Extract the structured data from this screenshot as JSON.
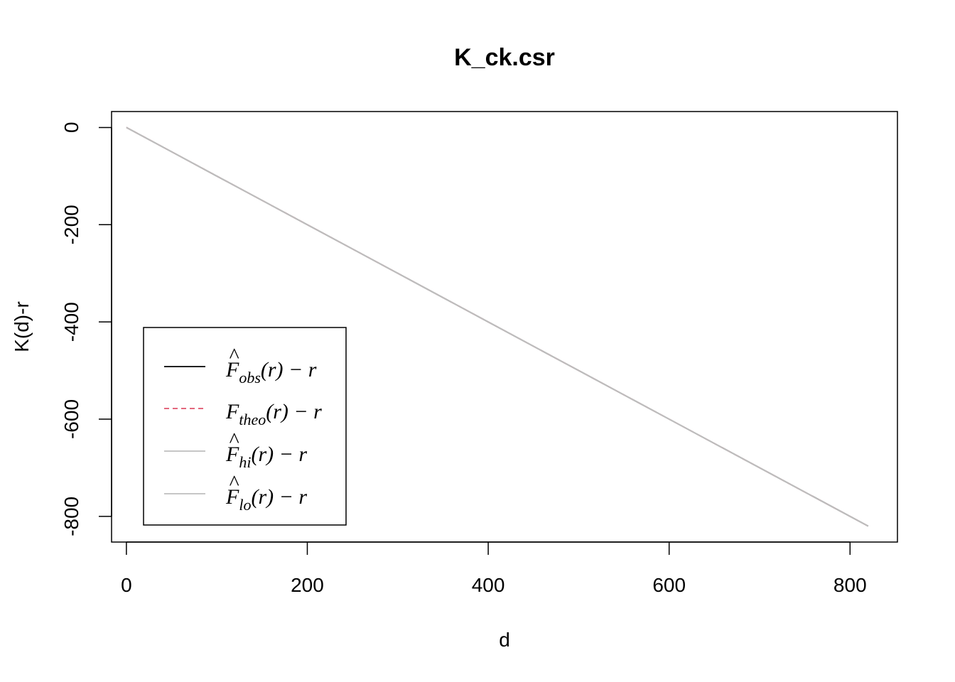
{
  "chart_data": {
    "type": "line",
    "title": "K_ck.csr",
    "xlabel": "d",
    "ylabel": "K(d)-r",
    "xlim": [
      -16.4,
      852.4
    ],
    "ylim": [
      -852.8,
      32.8
    ],
    "x_ticks": [
      0,
      200,
      400,
      600,
      800
    ],
    "y_ticks": [
      0,
      -200,
      -400,
      -600,
      -800
    ],
    "x_tick_labels": [
      "0",
      "200",
      "400",
      "600",
      "800"
    ],
    "y_tick_labels": [
      "0",
      "-200",
      "-400",
      "-600",
      "-800"
    ],
    "grid": false,
    "legend_position": "bottom-left",
    "series": [
      {
        "key": "obs",
        "legend": {
          "base": "F",
          "hat": true,
          "sub": "obs",
          "rest": "(r) − r"
        },
        "color": "#000000",
        "dash": "solid",
        "x": [
          0,
          100,
          200,
          300,
          400,
          500,
          600,
          700,
          820
        ],
        "y": [
          0,
          -100,
          -200,
          -300,
          -400,
          -500,
          -600,
          -700,
          -820
        ]
      },
      {
        "key": "theo",
        "legend": {
          "base": "F",
          "hat": false,
          "sub": "theo",
          "rest": "(r) − r"
        },
        "color": "#DF536B",
        "dash": "dashed",
        "x": [
          0,
          820
        ],
        "y": [
          0,
          -820
        ]
      },
      {
        "key": "hi",
        "legend": {
          "base": "F",
          "hat": true,
          "sub": "hi",
          "rest": "(r) − r"
        },
        "color": "#BEBEBE",
        "dash": "solid",
        "x": [
          0,
          820
        ],
        "y": [
          0,
          -820
        ]
      },
      {
        "key": "lo",
        "legend": {
          "base": "F",
          "hat": true,
          "sub": "lo",
          "rest": "(r) − r"
        },
        "color": "#BEBEBE",
        "dash": "solid",
        "x": [
          0,
          820
        ],
        "y": [
          0,
          -820
        ]
      }
    ]
  }
}
